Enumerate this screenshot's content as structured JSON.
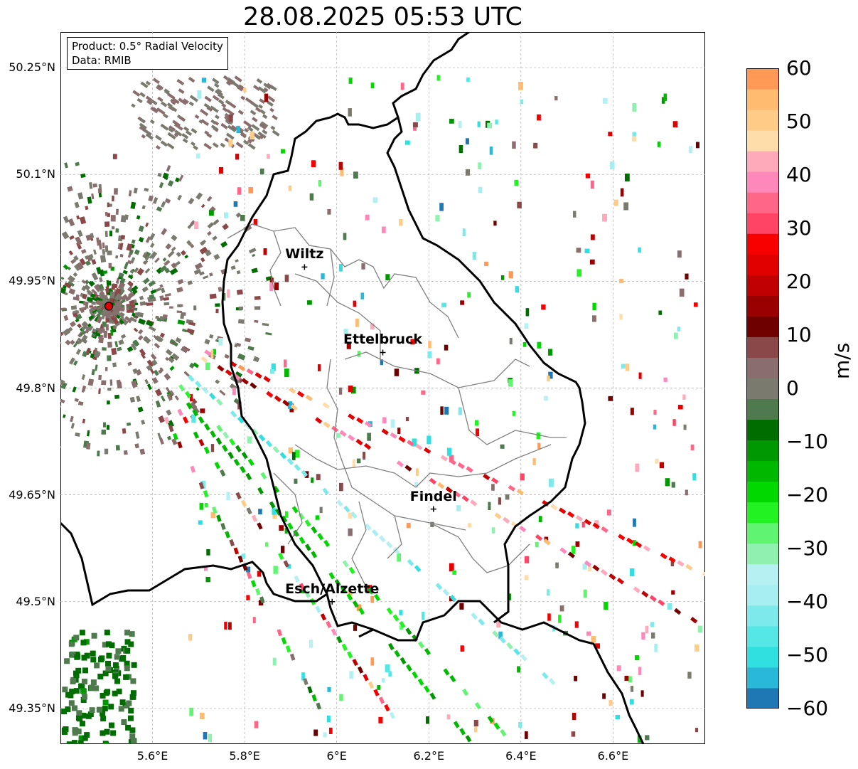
{
  "title": "28.08.2025 05:53 UTC",
  "info": {
    "product": "Product: 0.5° Radial Velocity",
    "data": "Data: RMIB"
  },
  "axes": {
    "lon_range": [
      5.4,
      6.8
    ],
    "lat_range": [
      49.3,
      50.3
    ],
    "x_ticks": [
      "5.6°E",
      "5.8°E",
      "6°E",
      "6.2°E",
      "6.4°E",
      "6.6°E"
    ],
    "x_tick_values": [
      5.6,
      5.8,
      6.0,
      6.2,
      6.4,
      6.6
    ],
    "y_ticks": [
      "50.25°N",
      "50.1°N",
      "49.95°N",
      "49.8°N",
      "49.65°N",
      "49.5°N",
      "49.35°N"
    ],
    "y_tick_values": [
      50.25,
      50.1,
      49.95,
      49.8,
      49.65,
      49.5,
      49.35
    ],
    "grid": true
  },
  "cities": [
    {
      "name": "Wiltz",
      "lon": 5.93,
      "lat": 49.97
    },
    {
      "name": "Ettelbruck",
      "lon": 6.1,
      "lat": 49.85
    },
    {
      "name": "Findel",
      "lon": 6.21,
      "lat": 49.63
    },
    {
      "name": "Esch/Alzette",
      "lon": 5.99,
      "lat": 49.5
    }
  ],
  "radar_site": {
    "lon": 5.505,
    "lat": 49.915,
    "color": "#e00000"
  },
  "colorbar": {
    "ticks": [
      "60",
      "50",
      "40",
      "30",
      "20",
      "10",
      "0",
      "−10",
      "−20",
      "−30",
      "−40",
      "−50",
      "−60"
    ],
    "tick_values": [
      60,
      50,
      40,
      30,
      20,
      10,
      0,
      -10,
      -20,
      -30,
      -40,
      -50,
      -60
    ],
    "unit": "m/s",
    "range": [
      -60,
      60
    ],
    "colors": [
      "#1f78b4",
      "#29b8d8",
      "#30dfe0",
      "#55e6e6",
      "#7de9ea",
      "#a6eeef",
      "#b7f0f3",
      "#8ff0b0",
      "#5ff570",
      "#22f222",
      "#00d800",
      "#00b800",
      "#009800",
      "#006d00",
      "#4e7a4e",
      "#7a7a6e",
      "#8a6e6e",
      "#8a4848",
      "#6e0000",
      "#9a0000",
      "#c00000",
      "#e00000",
      "#f80000",
      "#ff4466",
      "#ff6688",
      "#ff88bb",
      "#ffaabb",
      "#ffddaa",
      "#ffcc88",
      "#ffbb70",
      "#ff9955"
    ]
  }
}
